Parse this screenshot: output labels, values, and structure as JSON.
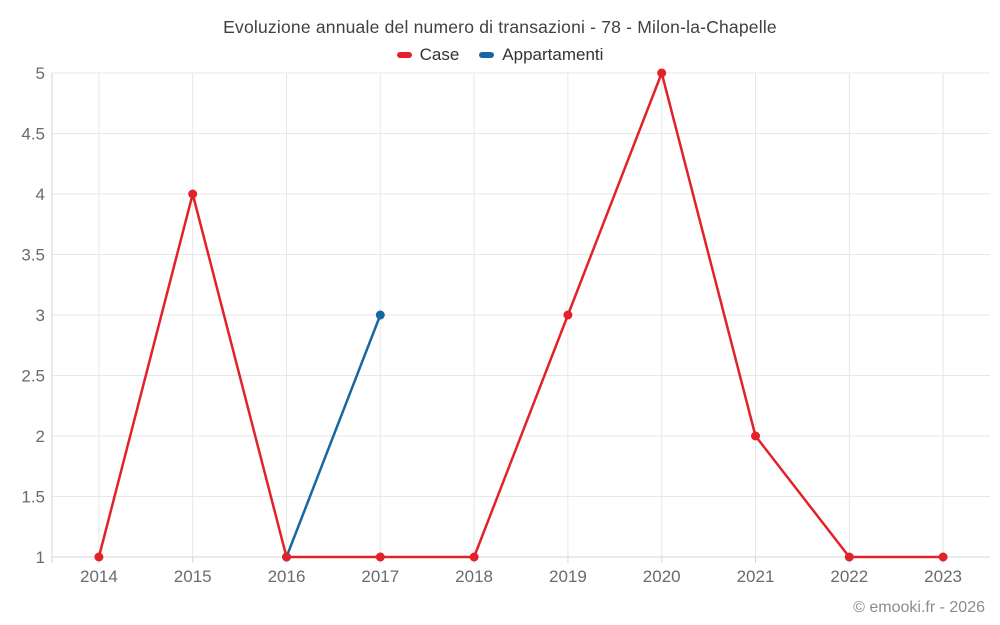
{
  "chart_title": "Evoluzione annuale del numero di transazioni - 78 - Milon-la-Chapelle",
  "credits": "© emooki.fr - 2026",
  "chart_data": {
    "type": "line",
    "title": "Evoluzione annuale del numero di transazioni - 78 - Milon-la-Chapelle",
    "categories": [
      "2014",
      "2015",
      "2016",
      "2017",
      "2018",
      "2019",
      "2020",
      "2021",
      "2022",
      "2023"
    ],
    "series": [
      {
        "name": "Case",
        "color": "#e32128",
        "values": [
          1,
          4,
          1,
          1,
          1,
          3,
          5,
          2,
          1,
          1
        ]
      },
      {
        "name": "Appartamenti",
        "color": "#1668a2",
        "values": [
          null,
          null,
          1,
          3,
          null,
          null,
          null,
          null,
          null,
          null
        ]
      }
    ],
    "xlabel": "",
    "ylabel": "",
    "ylim": [
      1,
      5
    ],
    "ytick_step": 0.5,
    "grid": true,
    "legend_position": "top",
    "marker_radius": 4.5,
    "line_width": 2.5
  },
  "colors": {
    "background": "#ffffff",
    "grid": "#e7e7e7",
    "axis": "#d6d6d6",
    "tick_label": "#6b6b6b",
    "title": "#404040",
    "legend_text": "#333333",
    "credits": "#8c8c8c"
  }
}
